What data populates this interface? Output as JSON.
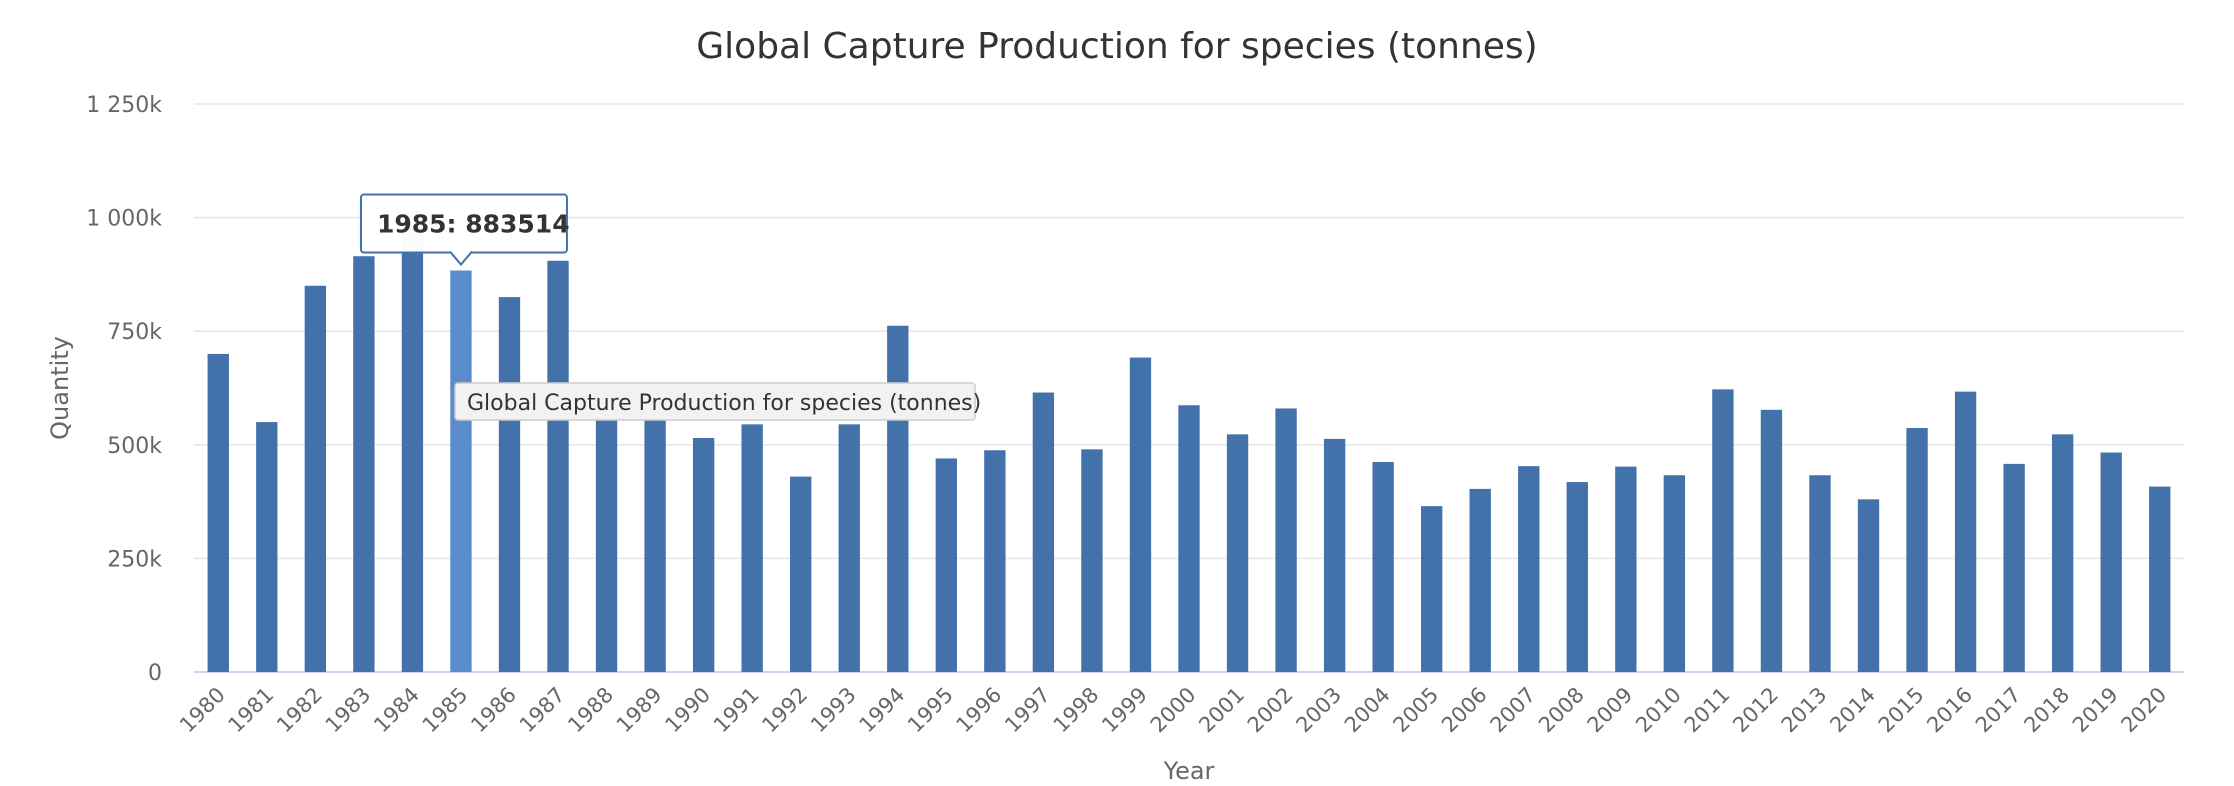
{
  "chart_data": {
    "type": "bar",
    "title": "Global Capture Production for species (tonnes)",
    "xlabel": "Year",
    "ylabel": "Quantity",
    "ylim": [
      0,
      1250000
    ],
    "yticks": [
      0,
      250000,
      500000,
      750000,
      1000000,
      1250000
    ],
    "ytick_labels": [
      "0",
      "250k",
      "500k",
      "750k",
      "1 000k",
      "1 250k"
    ],
    "grid": true,
    "categories": [
      "1980",
      "1981",
      "1982",
      "1983",
      "1984",
      "1985",
      "1986",
      "1987",
      "1988",
      "1989",
      "1990",
      "1991",
      "1992",
      "1993",
      "1994",
      "1995",
      "1996",
      "1997",
      "1998",
      "1999",
      "2000",
      "2001",
      "2002",
      "2003",
      "2004",
      "2005",
      "2006",
      "2007",
      "2008",
      "2009",
      "2010",
      "2011",
      "2012",
      "2013",
      "2014",
      "2015",
      "2016",
      "2017",
      "2018",
      "2019",
      "2020"
    ],
    "values": [
      700000,
      550000,
      850000,
      915000,
      985000,
      883514,
      825000,
      905000,
      590000,
      570000,
      515000,
      545000,
      430000,
      545000,
      762000,
      470000,
      488000,
      615000,
      490000,
      692000,
      587000,
      523000,
      580000,
      513000,
      462000,
      365000,
      403000,
      453000,
      418000,
      452000,
      433000,
      622000,
      577000,
      433000,
      380000,
      537000,
      617000,
      458000,
      523000,
      483000,
      408000
    ],
    "color": "#4372ab",
    "hover_color": "#5b8ccc"
  },
  "tooltip": {
    "category": "1985",
    "text": "1985: 883514"
  },
  "hover_label": {
    "text": "Global Capture Production for species (tonnes)"
  }
}
